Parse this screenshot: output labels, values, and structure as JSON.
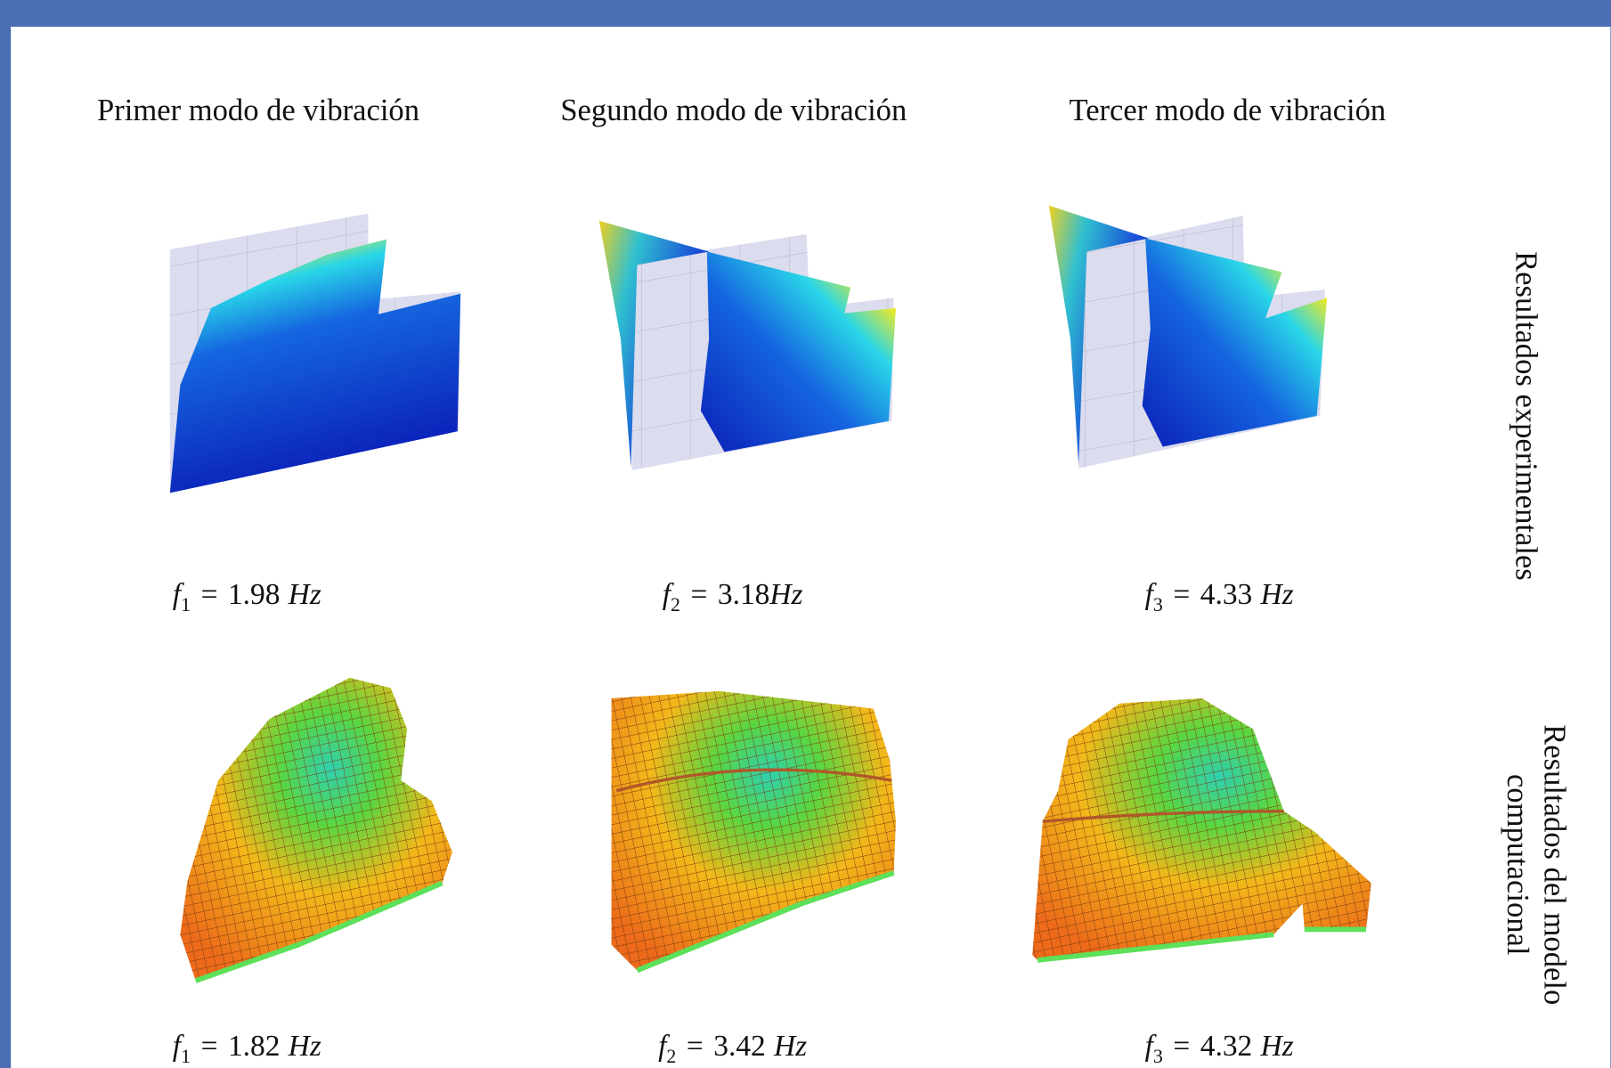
{
  "columns": [
    {
      "title": "Primer modo de vibración"
    },
    {
      "title": "Segundo modo de vibración"
    },
    {
      "title": "Tercer modo de vibración"
    }
  ],
  "rows": [
    {
      "label_lines": [
        "Resultados experimentales"
      ],
      "frequencies": [
        {
          "symbol": "f",
          "index": "1",
          "relation": "=",
          "value": 1.98,
          "unit": "Hz"
        },
        {
          "symbol": "f",
          "index": "2",
          "relation": "=",
          "value": 3.18,
          "unit": "Hz"
        },
        {
          "symbol": "f",
          "index": "3",
          "relation": "=",
          "value": 4.33,
          "unit": "Hz"
        }
      ]
    },
    {
      "label_lines": [
        "Resultados del modelo",
        "computacional"
      ],
      "frequencies": [
        {
          "symbol": "f",
          "index": "1",
          "relation": "=",
          "value": 1.82,
          "unit": "Hz"
        },
        {
          "symbol": "f",
          "index": "2",
          "relation": "=",
          "value": 3.42,
          "unit": "Hz"
        },
        {
          "symbol": "f",
          "index": "3",
          "relation": "=",
          "value": 4.32,
          "unit": "Hz"
        }
      ]
    }
  ]
}
